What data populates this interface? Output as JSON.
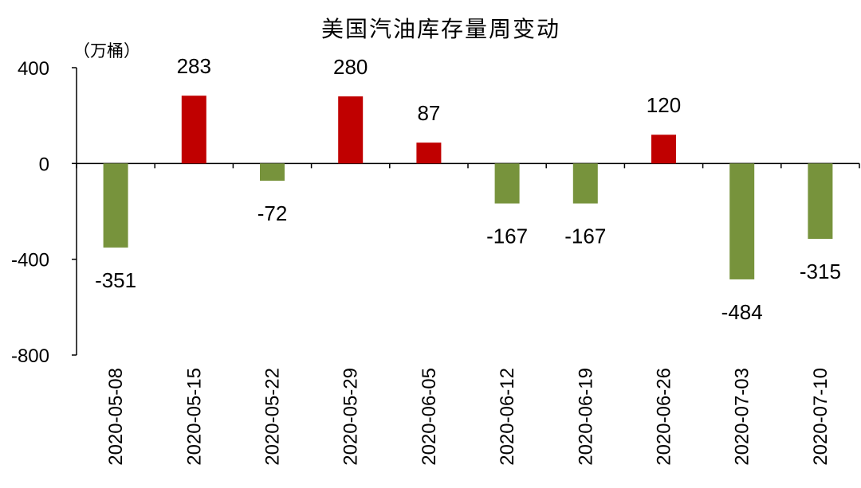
{
  "chart_data": {
    "type": "bar",
    "title": "美国汽油库存量周变动",
    "unit_label": "（万桶）",
    "categories": [
      "2020-05-08",
      "2020-05-15",
      "2020-05-22",
      "2020-05-29",
      "2020-06-05",
      "2020-06-12",
      "2020-06-19",
      "2020-06-26",
      "2020-07-03",
      "2020-07-10"
    ],
    "values": [
      -351,
      283,
      -72,
      280,
      87,
      -167,
      -167,
      120,
      -484,
      -315
    ],
    "data_labels": [
      "-351",
      "283",
      "-72",
      "280",
      "87",
      "-167",
      "-167",
      "120",
      "-484",
      "-315"
    ],
    "ylim": [
      -800,
      400
    ],
    "yticks": [
      400,
      0,
      -400,
      -800
    ],
    "ytick_labels": [
      "400",
      "0",
      "-400",
      "-800"
    ],
    "grid": false,
    "colors": {
      "positive": "#c00000",
      "negative": "#77933c",
      "axis": "#000000"
    }
  }
}
